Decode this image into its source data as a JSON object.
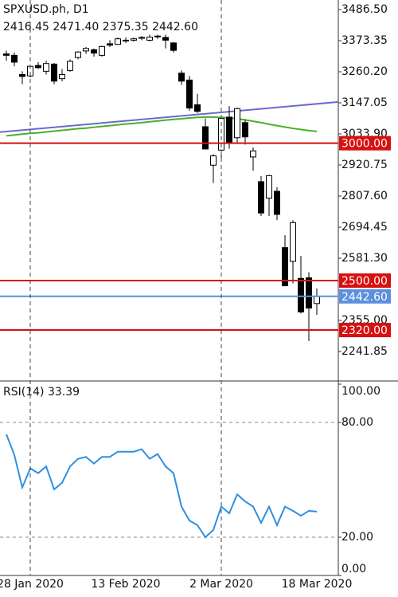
{
  "chart_data": [
    {
      "type": "candlestick",
      "title": "SPXUSD.ph, D1",
      "ohlc_labels": [
        "2416.45",
        "2471.40",
        "2375.35",
        "2442.60"
      ],
      "categories": [
        null,
        null,
        null,
        "28 Jan 2020",
        null,
        null,
        null,
        null,
        null,
        null,
        null,
        null,
        null,
        null,
        null,
        "13 Feb 2020",
        null,
        null,
        null,
        null,
        null,
        null,
        null,
        null,
        null,
        null,
        null,
        "2 Mar 2020",
        null,
        null,
        null,
        null,
        null,
        null,
        null,
        null,
        null,
        null,
        null,
        "18 Mar 2020"
      ],
      "open": [
        3325,
        3320,
        3250,
        3245,
        3283,
        3262,
        3288,
        3235,
        3265,
        3312,
        3336,
        3340,
        3320,
        3362,
        3360,
        3375,
        3375,
        3382,
        3375,
        3390,
        3385,
        3365,
        3255,
        3230,
        3140,
        3060,
        2920,
        2975,
        3095,
        3020,
        3075,
        2950,
        2860,
        2800,
        2825,
        2620,
        2570,
        2508,
        2510,
        2416.45
      ],
      "high": [
        3337,
        3330,
        3262,
        3285,
        3295,
        3300,
        3292,
        3270,
        3305,
        3335,
        3350,
        3345,
        3355,
        3375,
        3385,
        3385,
        3385,
        3390,
        3395,
        3395,
        3395,
        3368,
        3265,
        3245,
        3180,
        3090,
        2960,
        3090,
        3135,
        3130,
        3085,
        2985,
        2880,
        2885,
        2840,
        2665,
        2720,
        2590,
        2530,
        2471.4
      ],
      "low": [
        3300,
        3280,
        3215,
        3240,
        3270,
        3250,
        3215,
        3225,
        3260,
        3305,
        3325,
        3315,
        3315,
        3350,
        3358,
        3365,
        3370,
        3375,
        3370,
        3380,
        3345,
        3330,
        3212,
        3118,
        3110,
        2977,
        2855,
        2945,
        2980,
        3000,
        2995,
        2900,
        2735,
        2735,
        2720,
        2480,
        2490,
        2380,
        2280,
        2375.35
      ],
      "close": [
        3320,
        3295,
        3243,
        3280,
        3275,
        3290,
        3226,
        3250,
        3298,
        3332,
        3345,
        3328,
        3352,
        3357,
        3380,
        3373,
        3380,
        3385,
        3386,
        3388,
        3375,
        3338,
        3226,
        3128,
        3116,
        2979,
        2954,
        3090,
        3003,
        3126,
        3023,
        2972,
        2746,
        2882,
        2741,
        2481,
        2711,
        2386,
        2400,
        2442.6
      ],
      "up_color": "#ffffff",
      "down_color": "#000000",
      "ylim": [
        2134.5,
        3521.3
      ],
      "yticks": [
        {
          "value": 3486.5,
          "label": "3486.50"
        },
        3373.35,
        {
          "value": 3260.2,
          "label": "3260.20"
        },
        3147.05,
        {
          "value": 3033.9,
          "label": "3033.90"
        },
        2920.75,
        {
          "value": 2807.6,
          "label": "2807.60"
        },
        2694.45,
        {
          "value": 2581.3,
          "label": "2581.30"
        },
        {
          "value": 2355,
          "label": "2355.00"
        },
        2241.85
      ],
      "moving_average": {
        "color": "#4caf28",
        "values": [
          3027,
          3030,
          3033,
          3036,
          3038,
          3041,
          3044,
          3047,
          3050,
          3053,
          3055,
          3058,
          3061,
          3064,
          3067,
          3070,
          3072,
          3075,
          3078,
          3081,
          3084,
          3087,
          3089,
          3092,
          3094,
          3095,
          3095,
          3094,
          3092,
          3089,
          3085,
          3080,
          3075,
          3069,
          3064,
          3059,
          3054,
          3050,
          3046,
          3043
        ]
      },
      "trendline": {
        "color": "#6a6ad0",
        "x": [
          -1,
          42
        ],
        "values": [
          3040,
          3151
        ]
      },
      "hlines": [
        {
          "value": 3000,
          "label": "3000.00",
          "color": "#d81010"
        },
        {
          "value": 2500,
          "label": "2500.00",
          "color": "#d81010"
        },
        {
          "value": 2320,
          "label": "2320.00",
          "color": "#d81010"
        },
        {
          "value": 2442.6,
          "label": "2442.60",
          "color": "#5b8fe0"
        }
      ],
      "date_lines": [
        3,
        27
      ]
    },
    {
      "type": "line",
      "title": "RSI(14)",
      "color": "#2f8fe0",
      "values": [
        73.8,
        63,
        46,
        56,
        53.5,
        57,
        45,
        48.5,
        57,
        61,
        62,
        58.5,
        62,
        62,
        64.7,
        64.7,
        64.7,
        66,
        61,
        63.5,
        57,
        53.5,
        36,
        28.7,
        26.3,
        20,
        23.8,
        36,
        32.5,
        42.4,
        38.7,
        36,
        27.5,
        36,
        26.3,
        36,
        33.8,
        31.2,
        33.8,
        33.39
      ],
      "ylim": [
        0,
        100
      ],
      "yticks": [
        {
          "value": 100,
          "label": "100.00"
        },
        {
          "value": 80,
          "label": "80.00"
        },
        {
          "value": 20,
          "label": "20.00"
        },
        {
          "value": 0,
          "label": "0.00"
        }
      ],
      "levels": [
        80,
        20
      ]
    }
  ]
}
